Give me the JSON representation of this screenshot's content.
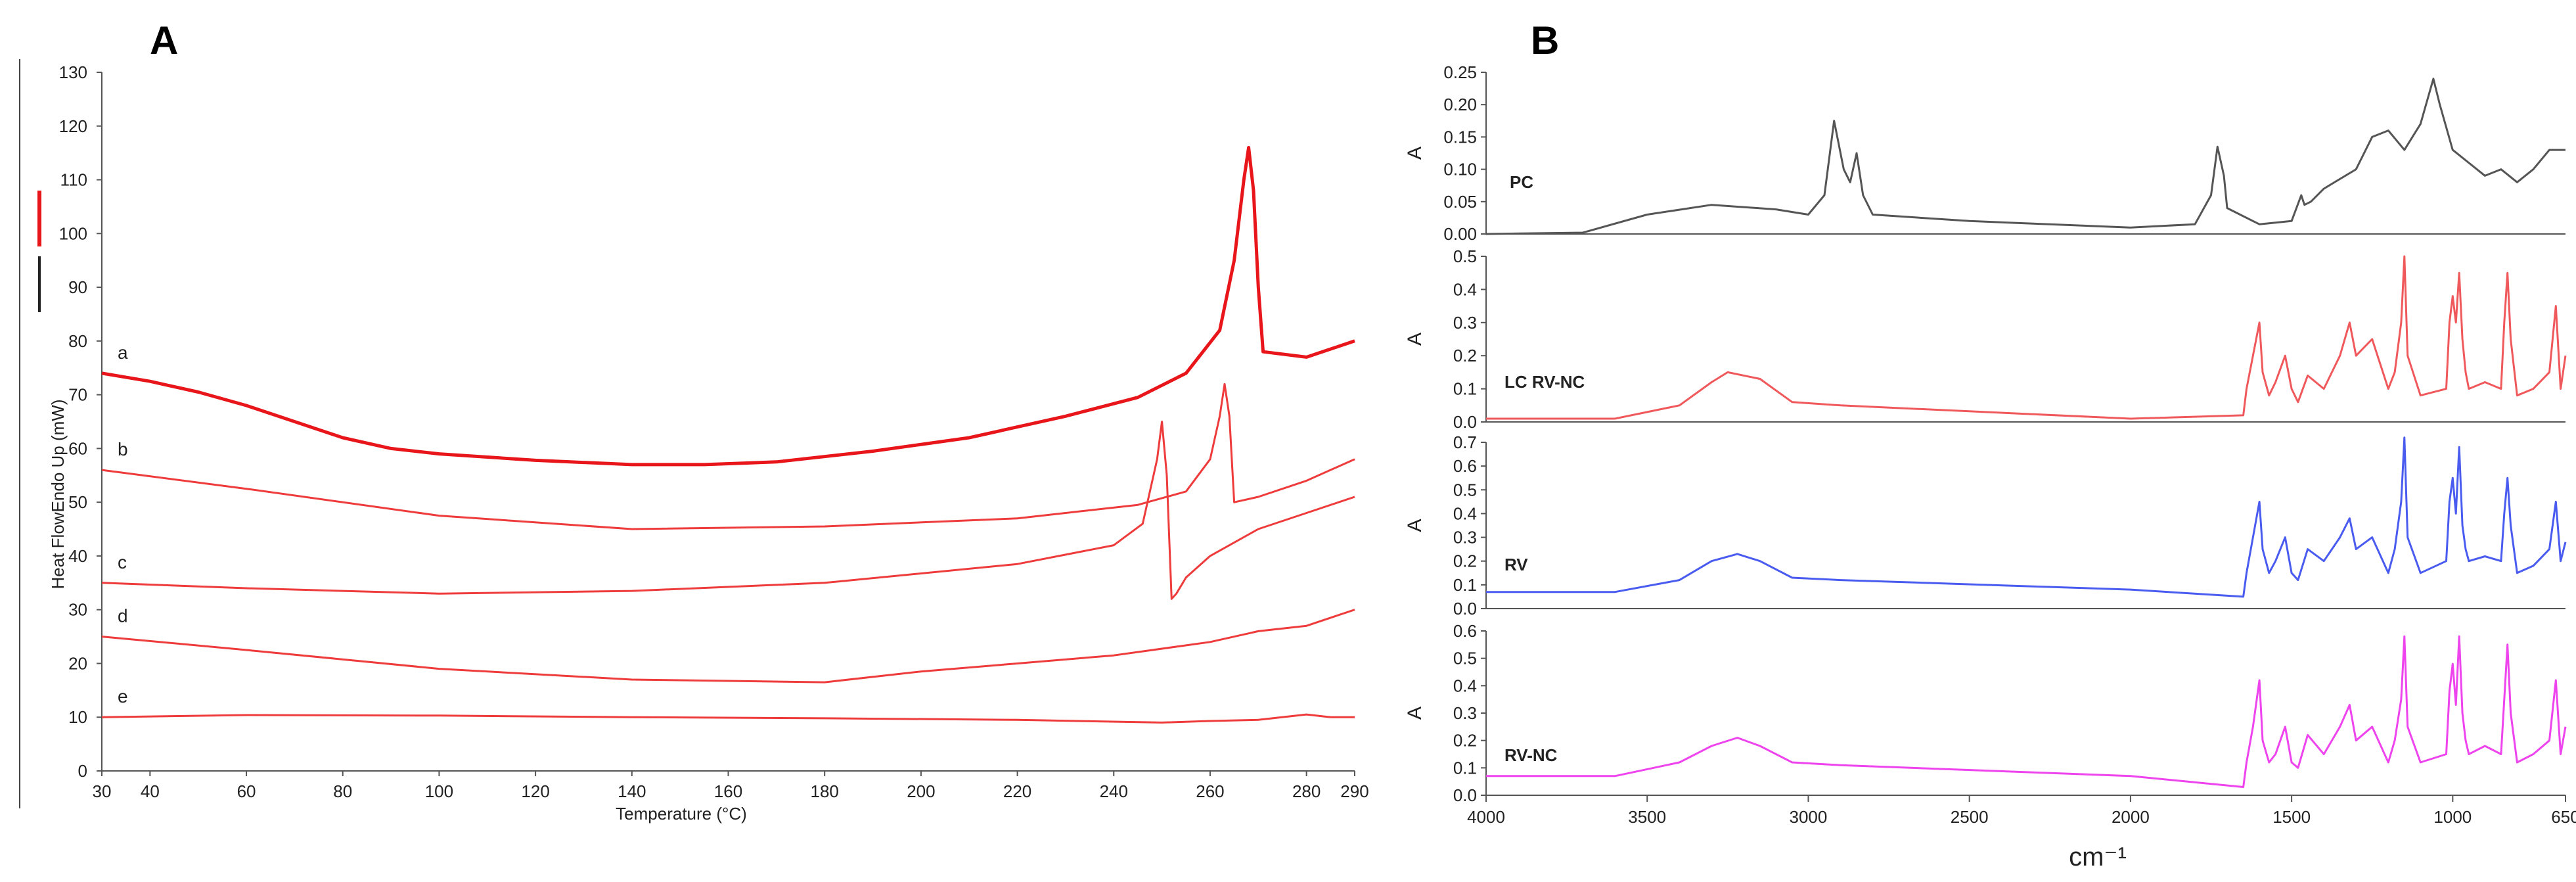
{
  "chart_data": [
    {
      "panel_label": "A",
      "type": "line",
      "xlabel": "Temperature (°C)",
      "ylabel": "Heat FlowEndo Up (mW)",
      "xlim": [
        30,
        290
      ],
      "ylim": [
        0,
        130
      ],
      "x_ticks": [
        30,
        40,
        60,
        80,
        100,
        120,
        140,
        160,
        180,
        200,
        220,
        240,
        260,
        280,
        290
      ],
      "y_ticks": [
        0,
        10,
        20,
        30,
        40,
        50,
        60,
        70,
        80,
        90,
        100,
        110,
        120,
        130
      ],
      "series": [
        {
          "name": "a",
          "color": "#e8161a",
          "x": [
            30,
            40,
            50,
            60,
            70,
            80,
            90,
            100,
            120,
            140,
            155,
            170,
            190,
            210,
            230,
            245,
            255,
            262,
            265,
            267,
            268,
            269,
            270,
            271,
            280,
            290
          ],
          "y": [
            74,
            72.5,
            70.5,
            68,
            65,
            62,
            60,
            59,
            57.8,
            57,
            57,
            57.5,
            59.5,
            62,
            66,
            69.5,
            74,
            82,
            95,
            110,
            116,
            108,
            90,
            78,
            77,
            80
          ]
        },
        {
          "name": "b",
          "color": "#ee3b3b",
          "x": [
            30,
            60,
            100,
            140,
            180,
            220,
            245,
            255,
            260,
            262,
            263,
            264,
            265,
            270,
            280,
            290
          ],
          "y": [
            56,
            52.5,
            47.5,
            45,
            45.5,
            47,
            49.5,
            52,
            58,
            66,
            72,
            66,
            50,
            51,
            54,
            58
          ]
        },
        {
          "name": "c",
          "color": "#ee3b3b",
          "x": [
            30,
            60,
            100,
            140,
            180,
            220,
            240,
            246,
            249,
            250,
            251,
            252,
            253,
            255,
            260,
            270,
            280,
            290
          ],
          "y": [
            35,
            34,
            33,
            33.5,
            35,
            38.5,
            42,
            46,
            58,
            65,
            55,
            32,
            33,
            36,
            40,
            45,
            48,
            51
          ]
        },
        {
          "name": "d",
          "color": "#ee3b3b",
          "x": [
            30,
            60,
            100,
            140,
            180,
            200,
            220,
            240,
            260,
            270,
            280,
            290
          ],
          "y": [
            25,
            22.5,
            19,
            17,
            16.5,
            18.5,
            20,
            21.5,
            24,
            26,
            27,
            30
          ]
        },
        {
          "name": "e",
          "color": "#ee3b3b",
          "x": [
            30,
            60,
            100,
            140,
            180,
            220,
            250,
            260,
            270,
            280,
            285,
            290
          ],
          "y": [
            10,
            10.4,
            10.3,
            10,
            9.8,
            9.5,
            9,
            9.3,
            9.5,
            10.5,
            10,
            10
          ]
        }
      ],
      "legend_colors": [
        "#e8161a",
        "#222222"
      ]
    },
    {
      "panel_label": "B",
      "type": "line",
      "xlabel": "cm⁻¹",
      "x_ticks": [
        4000,
        3500,
        3000,
        2500,
        2000,
        1500,
        1000,
        650
      ],
      "xlim": [
        4000,
        650
      ],
      "subplots": [
        {
          "name": "PC",
          "ylabel": "A",
          "color": "#555555",
          "ylim": [
            0,
            0.25
          ],
          "y_ticks": [
            "0.00",
            "0.05",
            "0.10",
            "0.15",
            "0.20",
            "0.25"
          ],
          "x": [
            4000,
            3700,
            3500,
            3300,
            3100,
            3000,
            2950,
            2920,
            2890,
            2870,
            2850,
            2830,
            2800,
            2500,
            2000,
            1800,
            1750,
            1730,
            1710,
            1700,
            1600,
            1500,
            1470,
            1460,
            1440,
            1400,
            1300,
            1250,
            1200,
            1150,
            1100,
            1060,
            1040,
            1000,
            900,
            850,
            800,
            750,
            700,
            650
          ],
          "y": [
            0,
            0.002,
            0.03,
            0.045,
            0.038,
            0.03,
            0.06,
            0.175,
            0.1,
            0.08,
            0.125,
            0.06,
            0.03,
            0.02,
            0.01,
            0.015,
            0.06,
            0.135,
            0.09,
            0.04,
            0.015,
            0.02,
            0.06,
            0.045,
            0.05,
            0.07,
            0.1,
            0.15,
            0.16,
            0.13,
            0.17,
            0.24,
            0.2,
            0.13,
            0.09,
            0.1,
            0.08,
            0.1,
            0.13,
            0.13
          ]
        },
        {
          "name": "LC RV-NC",
          "ylabel": "A",
          "color": "#f0595c",
          "ylim": [
            0,
            0.5
          ],
          "y_ticks": [
            "0.0",
            "0.1",
            "0.2",
            "0.3",
            "0.4",
            "0.5"
          ],
          "x": [
            4000,
            3600,
            3400,
            3300,
            3250,
            3150,
            3050,
            2900,
            2000,
            1650,
            1640,
            1620,
            1600,
            1590,
            1570,
            1550,
            1520,
            1500,
            1480,
            1450,
            1400,
            1350,
            1320,
            1300,
            1250,
            1200,
            1180,
            1160,
            1150,
            1140,
            1100,
            1020,
            1010,
            1000,
            990,
            980,
            970,
            960,
            950,
            900,
            850,
            840,
            830,
            820,
            800,
            750,
            700,
            680,
            665,
            650
          ],
          "y": [
            0.01,
            0.01,
            0.05,
            0.12,
            0.15,
            0.13,
            0.06,
            0.05,
            0.01,
            0.02,
            0.1,
            0.2,
            0.3,
            0.15,
            0.08,
            0.12,
            0.2,
            0.1,
            0.06,
            0.14,
            0.1,
            0.2,
            0.3,
            0.2,
            0.25,
            0.1,
            0.15,
            0.3,
            0.5,
            0.2,
            0.08,
            0.1,
            0.3,
            0.38,
            0.3,
            0.45,
            0.25,
            0.15,
            0.1,
            0.12,
            0.1,
            0.3,
            0.45,
            0.25,
            0.08,
            0.1,
            0.15,
            0.35,
            0.1,
            0.2
          ]
        },
        {
          "name": "RV",
          "ylabel": "A",
          "color": "#4a5cf0",
          "ylim": [
            0,
            0.7
          ],
          "y_ticks": [
            "0.0",
            "0.1",
            "0.2",
            "0.3",
            "0.4",
            "0.5",
            "0.6",
            "0.7"
          ],
          "x": [
            4000,
            3600,
            3400,
            3300,
            3220,
            3150,
            3050,
            2900,
            2000,
            1650,
            1640,
            1620,
            1600,
            1590,
            1570,
            1550,
            1520,
            1500,
            1480,
            1450,
            1400,
            1350,
            1320,
            1300,
            1250,
            1200,
            1180,
            1160,
            1150,
            1140,
            1100,
            1020,
            1010,
            1000,
            990,
            980,
            970,
            960,
            950,
            900,
            850,
            840,
            830,
            820,
            800,
            750,
            700,
            680,
            665,
            650
          ],
          "y": [
            0.07,
            0.07,
            0.12,
            0.2,
            0.23,
            0.2,
            0.13,
            0.12,
            0.08,
            0.05,
            0.15,
            0.3,
            0.45,
            0.25,
            0.15,
            0.2,
            0.3,
            0.15,
            0.12,
            0.25,
            0.2,
            0.3,
            0.38,
            0.25,
            0.3,
            0.15,
            0.25,
            0.45,
            0.72,
            0.3,
            0.15,
            0.2,
            0.45,
            0.55,
            0.4,
            0.68,
            0.35,
            0.25,
            0.2,
            0.22,
            0.2,
            0.4,
            0.55,
            0.35,
            0.15,
            0.18,
            0.25,
            0.45,
            0.2,
            0.28
          ]
        },
        {
          "name": "RV-NC",
          "ylabel": "A",
          "color": "#ee44ee",
          "ylim": [
            0,
            0.6
          ],
          "y_ticks": [
            "0.0",
            "0.1",
            "0.2",
            "0.3",
            "0.4",
            "0.5",
            "0.6"
          ],
          "x": [
            4000,
            3600,
            3400,
            3300,
            3220,
            3150,
            3050,
            2900,
            2000,
            1650,
            1640,
            1620,
            1600,
            1590,
            1570,
            1550,
            1520,
            1500,
            1480,
            1450,
            1400,
            1350,
            1320,
            1300,
            1250,
            1200,
            1180,
            1160,
            1150,
            1140,
            1100,
            1020,
            1010,
            1000,
            990,
            980,
            970,
            960,
            950,
            900,
            850,
            840,
            830,
            820,
            800,
            750,
            700,
            680,
            665,
            650
          ],
          "y": [
            0.07,
            0.07,
            0.12,
            0.18,
            0.21,
            0.18,
            0.12,
            0.11,
            0.07,
            0.03,
            0.12,
            0.25,
            0.42,
            0.2,
            0.12,
            0.15,
            0.25,
            0.12,
            0.1,
            0.22,
            0.15,
            0.25,
            0.33,
            0.2,
            0.25,
            0.12,
            0.2,
            0.35,
            0.58,
            0.25,
            0.12,
            0.15,
            0.38,
            0.48,
            0.33,
            0.58,
            0.3,
            0.2,
            0.15,
            0.18,
            0.15,
            0.35,
            0.55,
            0.3,
            0.12,
            0.15,
            0.2,
            0.42,
            0.15,
            0.25
          ]
        }
      ]
    }
  ]
}
